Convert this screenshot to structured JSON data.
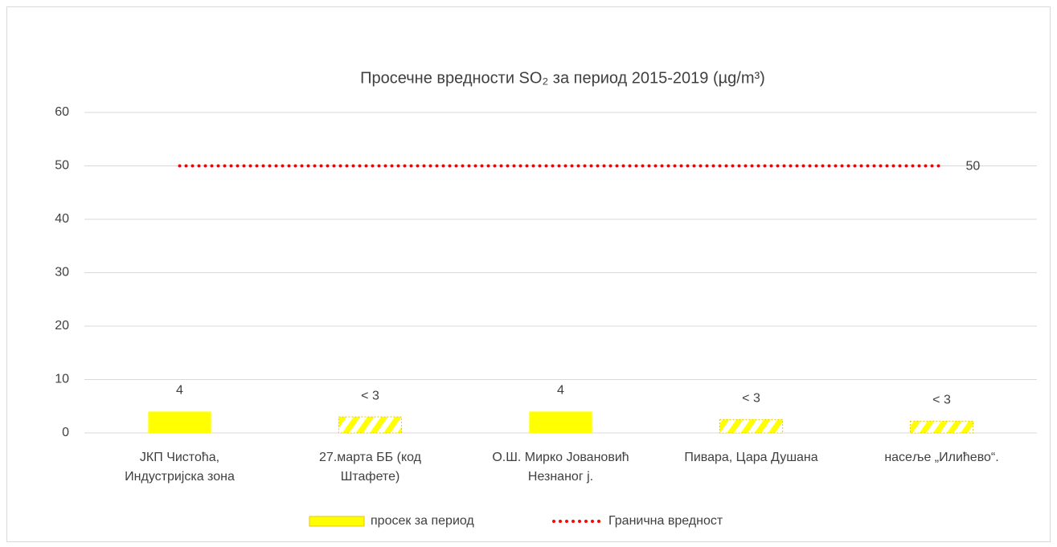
{
  "chart_data": {
    "type": "bar",
    "title": "Просечне вредности SO₂  за период 2015-2019 (µg/m³)",
    "categories": [
      "ЈКП Чистоћа,\nИндустријска зона",
      "27.марта ББ (код\nШтафете)",
      "О.Ш. Мирко Јовановић\nНезнаног ј.",
      "Пивара, Цара Душана",
      "насеље „Илићево“."
    ],
    "series": [
      {
        "name": "просек за период",
        "type": "bar",
        "color": "#ffff00",
        "values": [
          4,
          3,
          4,
          2.5,
          2.2
        ],
        "value_labels": [
          "4",
          "< 3",
          "4",
          "< 3",
          "< 3"
        ],
        "hatched": [
          false,
          true,
          false,
          true,
          true
        ]
      },
      {
        "name": "Гранична вредност",
        "type": "line",
        "color": "#ff0000",
        "dotted": true,
        "values": [
          50,
          50,
          50,
          50,
          50
        ],
        "end_label": true
      }
    ],
    "ylim": [
      0,
      60
    ],
    "yticks": [
      0,
      10,
      20,
      30,
      40,
      50,
      60
    ],
    "grid": true,
    "legend": "bottom"
  }
}
